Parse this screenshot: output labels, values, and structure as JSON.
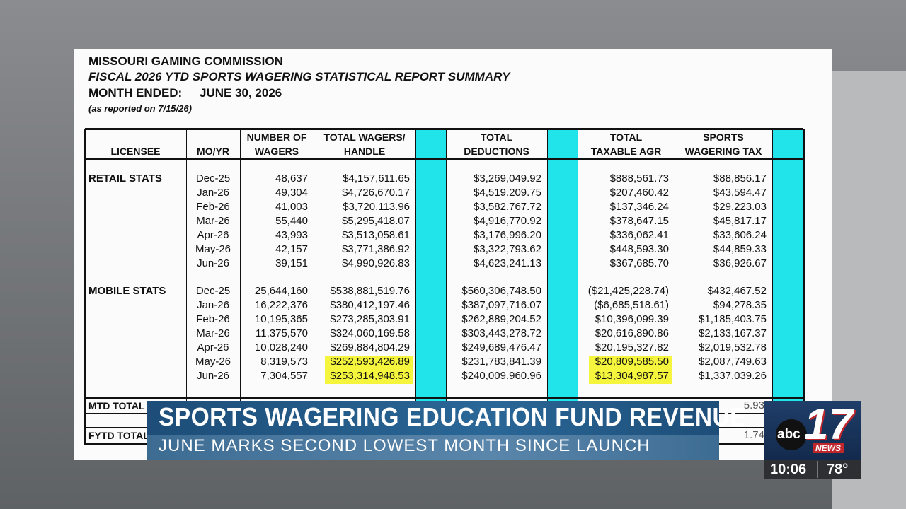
{
  "document": {
    "organization": "MISSOURI GAMING COMMISSION",
    "report_title": "FISCAL 2026 YTD SPORTS WAGERING STATISTICAL REPORT SUMMARY",
    "month_label": "MONTH ENDED:",
    "month": "JUNE 30, 2026",
    "note": "(as reported on 7/15/26)"
  },
  "table": {
    "headers": [
      [
        "LICENSEE"
      ],
      [
        "MO/YR"
      ],
      [
        "NUMBER OF",
        "WAGERS"
      ],
      [
        "TOTAL WAGERS/",
        "HANDLE"
      ],
      [
        "TOTAL",
        "DEDUCTIONS"
      ],
      [
        "TOTAL",
        "TAXABLE AGR"
      ],
      [
        "SPORTS",
        "WAGERING TAX"
      ]
    ],
    "sections": [
      {
        "label": "RETAIL STATS",
        "rows": [
          [
            "Dec-25",
            "48,637",
            "$4,157,611.65",
            "$3,269,049.92",
            "$888,561.73",
            "$88,856.17"
          ],
          [
            "Jan-26",
            "49,304",
            "$4,726,670.17",
            "$4,519,209.75",
            "$207,460.42",
            "$43,594.47"
          ],
          [
            "Feb-26",
            "41,003",
            "$3,720,113.96",
            "$3,582,767.72",
            "$137,346.24",
            "$29,223.03"
          ],
          [
            "Mar-26",
            "55,440",
            "$5,295,418.07",
            "$4,916,770.92",
            "$378,647.15",
            "$45,817.17"
          ],
          [
            "Apr-26",
            "43,993",
            "$3,513,058.61",
            "$3,176,996.20",
            "$336,062.41",
            "$33,606.24"
          ],
          [
            "May-26",
            "42,157",
            "$3,771,386.92",
            "$3,322,793.62",
            "$448,593.30",
            "$44,859.33"
          ],
          [
            "Jun-26",
            "39,151",
            "$4,990,926.83",
            "$4,623,241.13",
            "$367,685.70",
            "$36,926.67"
          ]
        ]
      },
      {
        "label": "MOBILE STATS",
        "rows": [
          [
            "Dec-25",
            "25,644,160",
            "$538,881,519.76",
            "$560,306,748.50",
            "($21,425,228.74)",
            "$432,467.52"
          ],
          [
            "Jan-26",
            "16,222,376",
            "$380,412,197.46",
            "$387,097,716.07",
            "($6,685,518.61)",
            "$94,278.35"
          ],
          [
            "Feb-26",
            "10,195,365",
            "$273,285,303.91",
            "$262,889,204.52",
            "$10,396,099.39",
            "$1,185,403.75"
          ],
          [
            "Mar-26",
            "11,375,570",
            "$324,060,169.58",
            "$303,443,278.72",
            "$20,616,890.86",
            "$2,133,167.37"
          ],
          [
            "Apr-26",
            "10,028,240",
            "$269,884,804.29",
            "$249,689,476.47",
            "$20,195,327.82",
            "$2,019,532.78"
          ],
          [
            "May-26",
            "8,319,573",
            "$252,593,426.89",
            "$231,783,841.39",
            "$20,809,585.50",
            "$2,087,749.63"
          ],
          [
            "Jun-26",
            "7,304,557",
            "$253,314,948.53",
            "$240,009,960.96",
            "$13,304,987.57",
            "$1,337,039.26"
          ]
        ]
      }
    ],
    "totals": [
      {
        "label": "MTD TOTAL",
        "partial_value": "5.93"
      },
      {
        "label": "FYTD TOTAL",
        "partial_value": "1.74"
      }
    ]
  },
  "lower_third": {
    "headline": "SPORTS WAGERING EDUCATION FUND REVENUE",
    "subheadline": "JUNE MARKS SECOND LOWEST MONTH SINCE LAUNCH"
  },
  "station": {
    "network": "abc",
    "channel": "17",
    "brand": "NEWS"
  },
  "status": {
    "time": "10:06",
    "temperature": "78°"
  }
}
